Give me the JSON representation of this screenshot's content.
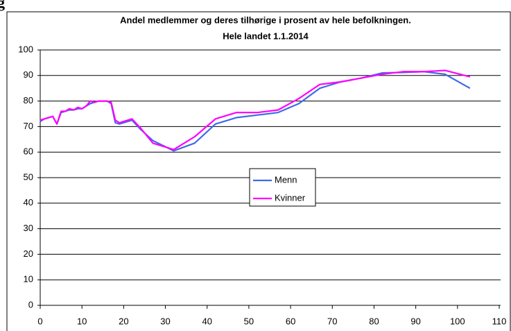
{
  "heading": "g",
  "chart_data": {
    "type": "line",
    "title": [
      "Andel medlemmer og deres tilhørige i prosent av hele befolkningen.",
      "Hele landet 1.1.2014"
    ],
    "x": [
      0,
      1,
      2,
      3,
      4,
      5,
      6,
      7,
      8,
      9,
      10,
      11,
      12,
      13,
      14,
      15,
      16,
      17,
      18,
      19,
      20,
      22,
      24,
      27,
      32,
      37,
      42,
      47,
      52,
      57,
      62,
      67,
      72,
      77,
      82,
      87,
      92,
      97,
      103
    ],
    "series": [
      {
        "name": "Menn",
        "color": "#3f6ae8",
        "values": [
          72,
          73,
          73.5,
          74,
          71,
          75.5,
          76,
          76.5,
          76.5,
          77,
          77,
          78,
          79,
          79.5,
          80,
          80,
          80,
          79,
          71.5,
          71,
          71.5,
          72.5,
          69,
          64.5,
          60.5,
          63.5,
          71,
          73.5,
          74.5,
          75.5,
          79,
          85,
          87.5,
          89,
          91,
          91.2,
          91.5,
          90.5,
          85
        ]
      },
      {
        "name": "Kvinner",
        "color": "#ff00ff",
        "values": [
          72.5,
          73,
          73.5,
          74,
          71,
          76,
          76,
          77,
          76.5,
          77.5,
          77,
          78,
          80,
          79.5,
          80,
          80,
          80,
          79.5,
          72.5,
          71.5,
          72,
          73,
          69.5,
          63.5,
          61,
          66,
          73,
          75.5,
          75.5,
          76.5,
          81,
          86.5,
          87.5,
          89,
          90.5,
          91.5,
          91.5,
          92,
          89.5
        ]
      }
    ],
    "xlim": [
      0,
      110
    ],
    "xticks": [
      0,
      10,
      20,
      30,
      40,
      50,
      60,
      70,
      80,
      90,
      100,
      110
    ],
    "ylim": [
      0,
      100
    ],
    "yticks": [
      0,
      10,
      20,
      30,
      40,
      50,
      60,
      70,
      80,
      90,
      100
    ],
    "grid": true,
    "legend": "center"
  }
}
